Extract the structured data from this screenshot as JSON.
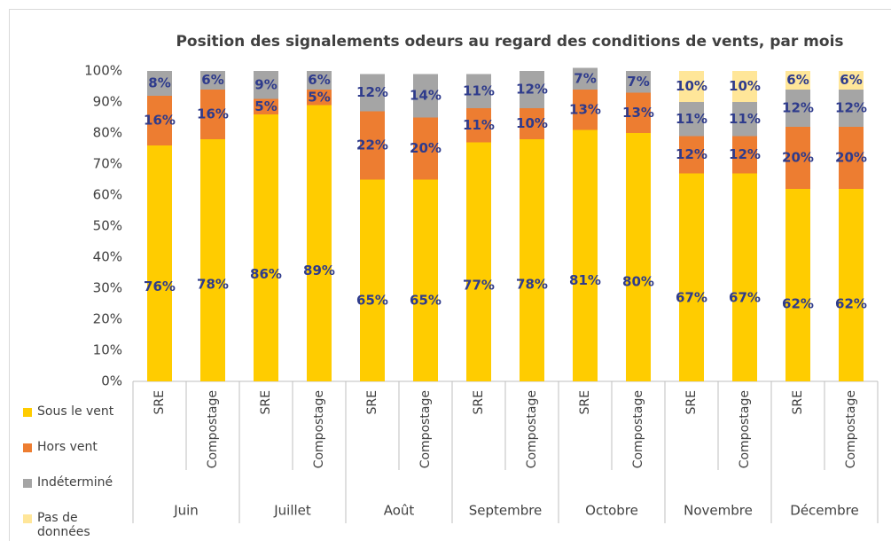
{
  "chart_data": {
    "type": "stacked_bar",
    "title": "Position des signalements odeurs au regard des conditions de vents, par mois",
    "categories": [
      "SRE",
      "Compostage",
      "SRE",
      "Compostage",
      "SRE",
      "Compostage",
      "SRE",
      "Compostage",
      "SRE",
      "Compostage",
      "SRE",
      "Compostage",
      "SRE",
      "Compostage"
    ],
    "groups": [
      "Juin",
      "Juillet",
      "Août",
      "Septembre",
      "Octobre",
      "Novembre",
      "Décembre"
    ],
    "series": [
      {
        "name": "Sous le vent",
        "color": "#FFCC00",
        "values": [
          76,
          78,
          86,
          89,
          65,
          65,
          77,
          78,
          81,
          80,
          67,
          67,
          62,
          62
        ],
        "value_labels": [
          "76%",
          "78%",
          "86%",
          "89%",
          "65%",
          "65%",
          "77%",
          "78%",
          "81%",
          "80%",
          "67%",
          "67%",
          "62%",
          "62%"
        ]
      },
      {
        "name": "Hors vent",
        "color": "#ED7D31",
        "values": [
          16,
          16,
          5,
          5,
          22,
          20,
          11,
          10,
          13,
          13,
          12,
          12,
          20,
          20
        ],
        "value_labels": [
          "16%",
          "16%",
          "5%",
          "5%",
          "22%",
          "20%",
          "11%",
          "10%",
          "13%",
          "13%",
          "12%",
          "12%",
          "20%",
          "20%"
        ]
      },
      {
        "name": "Indéterminé",
        "color": "#A5A5A5",
        "values": [
          8,
          6,
          9,
          6,
          12,
          14,
          11,
          12,
          7,
          7,
          11,
          11,
          12,
          12
        ],
        "value_labels": [
          "8%",
          "6%",
          "9%",
          "6%",
          "12%",
          "14%",
          "11%",
          "12%",
          "7%",
          "7%",
          "11%",
          "11%",
          "12%",
          "12%"
        ]
      },
      {
        "name": "Pas de données",
        "color": "#FFE699",
        "values": [
          0,
          0,
          0,
          0,
          0,
          0,
          0,
          0,
          0,
          0,
          10,
          10,
          6,
          6
        ],
        "value_labels": [
          null,
          null,
          null,
          null,
          null,
          null,
          null,
          null,
          null,
          null,
          "10%",
          "10%",
          "6%",
          "6%"
        ]
      }
    ],
    "ylim": [
      0,
      100
    ],
    "yticks": [
      {
        "value": 0,
        "label": "0%"
      },
      {
        "value": 10,
        "label": "10%"
      },
      {
        "value": 20,
        "label": "20%"
      },
      {
        "value": 30,
        "label": "30%"
      },
      {
        "value": 40,
        "label": "40%"
      },
      {
        "value": 50,
        "label": "50%"
      },
      {
        "value": 60,
        "label": "60%"
      },
      {
        "value": 70,
        "label": "70%"
      },
      {
        "value": 80,
        "label": "80%"
      },
      {
        "value": 90,
        "label": "90%"
      },
      {
        "value": 100,
        "label": "100%"
      }
    ],
    "grid": false
  }
}
